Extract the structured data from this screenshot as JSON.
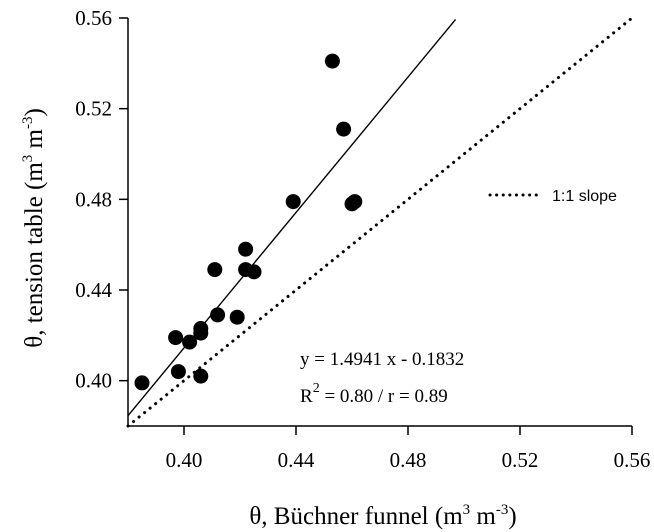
{
  "chart_data": {
    "type": "scatter",
    "title": "",
    "xlabel": "θ, Büchner funnel (m³ m⁻³)",
    "ylabel": "θ, tension table (m³ m⁻³)",
    "xlim": [
      0.38,
      0.56
    ],
    "ylim": [
      0.38,
      0.56
    ],
    "x_ticks": [
      0.4,
      0.44,
      0.48,
      0.52,
      0.56
    ],
    "y_ticks": [
      0.4,
      0.44,
      0.48,
      0.52,
      0.56
    ],
    "x_tick_labels": [
      "0.40",
      "0.44",
      "0.48",
      "0.52",
      "0.56"
    ],
    "y_tick_labels": [
      "0.40",
      "0.44",
      "0.48",
      "0.52",
      "0.56"
    ],
    "grid": false,
    "series": [
      {
        "type": "scatter",
        "marker": "filled-circle",
        "color": "#000000",
        "x": [
          0.385,
          0.397,
          0.398,
          0.402,
          0.406,
          0.406,
          0.406,
          0.411,
          0.412,
          0.419,
          0.422,
          0.422,
          0.425,
          0.439,
          0.453,
          0.457,
          0.46,
          0.461
        ],
        "y": [
          0.399,
          0.419,
          0.404,
          0.417,
          0.421,
          0.423,
          0.402,
          0.449,
          0.429,
          0.428,
          0.458,
          0.449,
          0.448,
          0.479,
          0.541,
          0.511,
          0.478,
          0.479
        ]
      },
      {
        "type": "line",
        "style": "solid",
        "color": "#000000",
        "equation": {
          "slope": 1.4941,
          "intercept": -0.1832
        },
        "x_range": [
          0.38,
          0.497
        ]
      },
      {
        "name": "1:1 slope",
        "type": "line",
        "style": "dotted",
        "color": "#000000",
        "equation": {
          "slope": 1.0,
          "intercept": 0.0
        },
        "x_range": [
          0.38,
          0.56
        ]
      }
    ],
    "legend": {
      "position": "right",
      "entries": [
        "1:1 slope"
      ]
    },
    "annotations": {
      "equation": "y = 1.4941 x - 0.1832",
      "r2_prefix": "R",
      "r2_sup": "2",
      "r2_rest": " = 0.80 / r = 0.89"
    },
    "xlabel_parts": {
      "pre": "θ, Büchner funnel (m",
      "sup1": "3",
      "mid": " m",
      "sup2": "-3",
      "post": ")"
    },
    "ylabel_parts": {
      "pre": "θ, tension table (m",
      "sup1": "3",
      "mid": " m",
      "sup2": "-3",
      "post": ")"
    }
  }
}
